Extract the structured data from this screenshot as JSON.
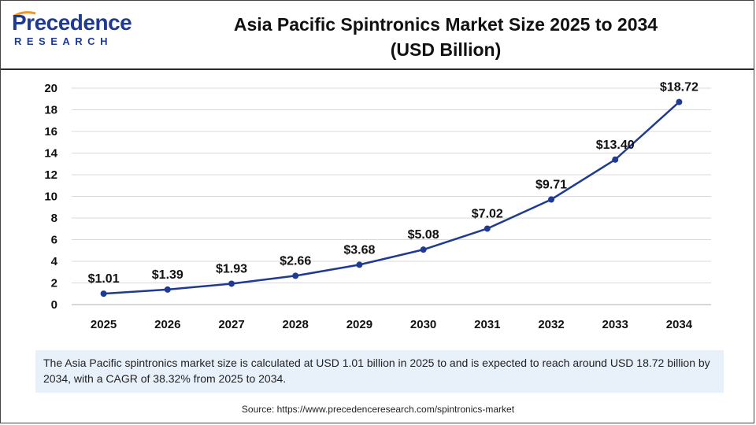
{
  "header": {
    "logo_word": "Precedence",
    "logo_sub": "RESEARCH",
    "title_line1": "Asia Pacific Spintronics Market Size 2025 to 2034",
    "title_line2": "(USD Billion)"
  },
  "caption": "The Asia Pacific spintronics market size is calculated at USD 1.01 billion in 2025 to and is expected to reach around USD 18.72 billion by 2034, with a CAGR of 38.32% from 2025 to 2034.",
  "source": "Source: https://www.precedenceresearch.com/spintronics-market",
  "colors": {
    "line": "#1f3a93",
    "grid": "#d9d9d9",
    "text": "#111111",
    "caption_bg": "#e8f0fa"
  },
  "chart_data": {
    "type": "line",
    "title": "Asia Pacific Spintronics Market Size 2025 to 2034 (USD Billion)",
    "xlabel": "",
    "ylabel": "",
    "x": [
      "2025",
      "2026",
      "2027",
      "2028",
      "2029",
      "2030",
      "2031",
      "2032",
      "2033",
      "2034"
    ],
    "series": [
      {
        "values": [
          1.01,
          1.39,
          1.93,
          2.66,
          3.68,
          5.08,
          7.02,
          9.71,
          13.4,
          18.72
        ]
      }
    ],
    "data_labels": [
      "$1.01",
      "$1.39",
      "$1.93",
      "$2.66",
      "$3.68",
      "$5.08",
      "$7.02",
      "$9.71",
      "$13.40",
      "$18.72"
    ],
    "ylim": [
      0,
      20
    ],
    "yticks": [
      0,
      2,
      4,
      6,
      8,
      10,
      12,
      14,
      16,
      18,
      20
    ],
    "grid": true,
    "legend": "none"
  }
}
